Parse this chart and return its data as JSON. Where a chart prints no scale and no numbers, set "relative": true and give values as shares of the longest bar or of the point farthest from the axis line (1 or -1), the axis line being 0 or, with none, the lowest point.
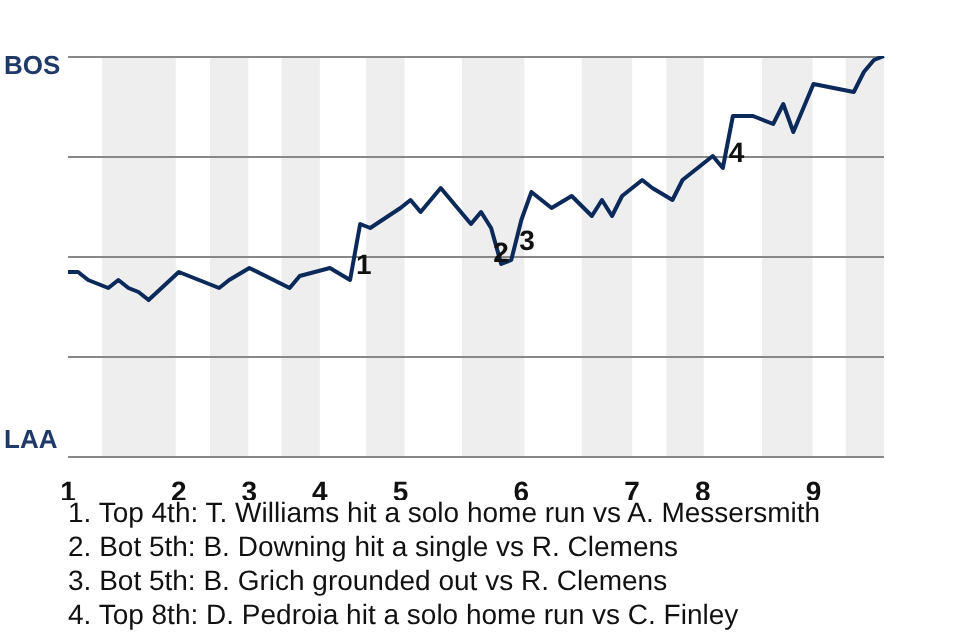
{
  "chart_data": {
    "type": "line",
    "relative": true,
    "categories": [
      "1",
      null,
      null,
      null,
      null,
      null,
      null,
      null,
      null,
      null,
      null,
      "2",
      null,
      null,
      null,
      null,
      null,
      null,
      "3",
      null,
      null,
      null,
      null,
      null,
      null,
      "4",
      null,
      null,
      null,
      null,
      null,
      null,
      null,
      "5",
      null,
      null,
      null,
      null,
      null,
      null,
      null,
      null,
      null,
      null,
      null,
      "6",
      null,
      null,
      null,
      null,
      null,
      null,
      null,
      null,
      null,
      null,
      "7",
      null,
      null,
      null,
      null,
      null,
      null,
      "8",
      null,
      null,
      null,
      null,
      null,
      null,
      null,
      null,
      null,
      null,
      "9",
      null,
      null,
      null,
      null,
      null,
      null,
      null
    ],
    "series": [
      {
        "color": "#0b2a5a",
        "values": [
          0.46,
          0.46,
          0.44,
          null,
          0.42,
          0.44,
          0.42,
          0.41,
          0.39,
          null,
          null,
          0.46,
          null,
          null,
          null,
          0.42,
          0.44,
          null,
          0.47,
          null,
          null,
          null,
          0.42,
          0.45,
          null,
          null,
          0.47,
          null,
          0.44,
          0.58,
          0.57,
          null,
          null,
          0.62,
          0.64,
          0.61,
          null,
          0.67,
          null,
          null,
          0.58,
          0.61,
          0.57,
          0.48,
          0.49,
          0.59,
          0.66,
          null,
          0.62,
          null,
          0.65,
          null,
          0.6,
          0.64,
          0.6,
          0.65,
          null,
          0.69,
          0.67,
          null,
          0.64,
          0.69,
          null,
          null,
          0.75,
          0.72,
          0.85,
          null,
          0.85,
          null,
          0.83,
          0.88,
          0.81,
          null,
          0.93,
          null,
          0.92,
          null,
          0.91,
          0.96,
          0.99,
          1
        ]
      }
    ],
    "ref_lines": [
      {
        "axis": "y",
        "value": 0,
        "color": "#888888"
      },
      {
        "axis": "y",
        "value": 0.25,
        "color": "#888888"
      },
      {
        "axis": "y",
        "value": 0.5,
        "color": "#888888"
      },
      {
        "axis": "y",
        "value": 0.75,
        "color": "#888888"
      },
      {
        "axis": "y",
        "value": 1,
        "color": "#888888"
      }
    ],
    "marker": "none",
    "annotations": [
      "BOS",
      "LAA",
      "1",
      "2",
      "3",
      "4",
      "1. Top 4th: T. Williams hit a solo home run vs A. Messersmith",
      "2. Bot 5th: B. Downing hit a single vs R. Clemens",
      "3. Bot 5th: B. Grich grounded out vs R. Clemens",
      "4. Top 8th: D. Pedroia hit a solo home run vs C. Finley"
    ]
  }
}
